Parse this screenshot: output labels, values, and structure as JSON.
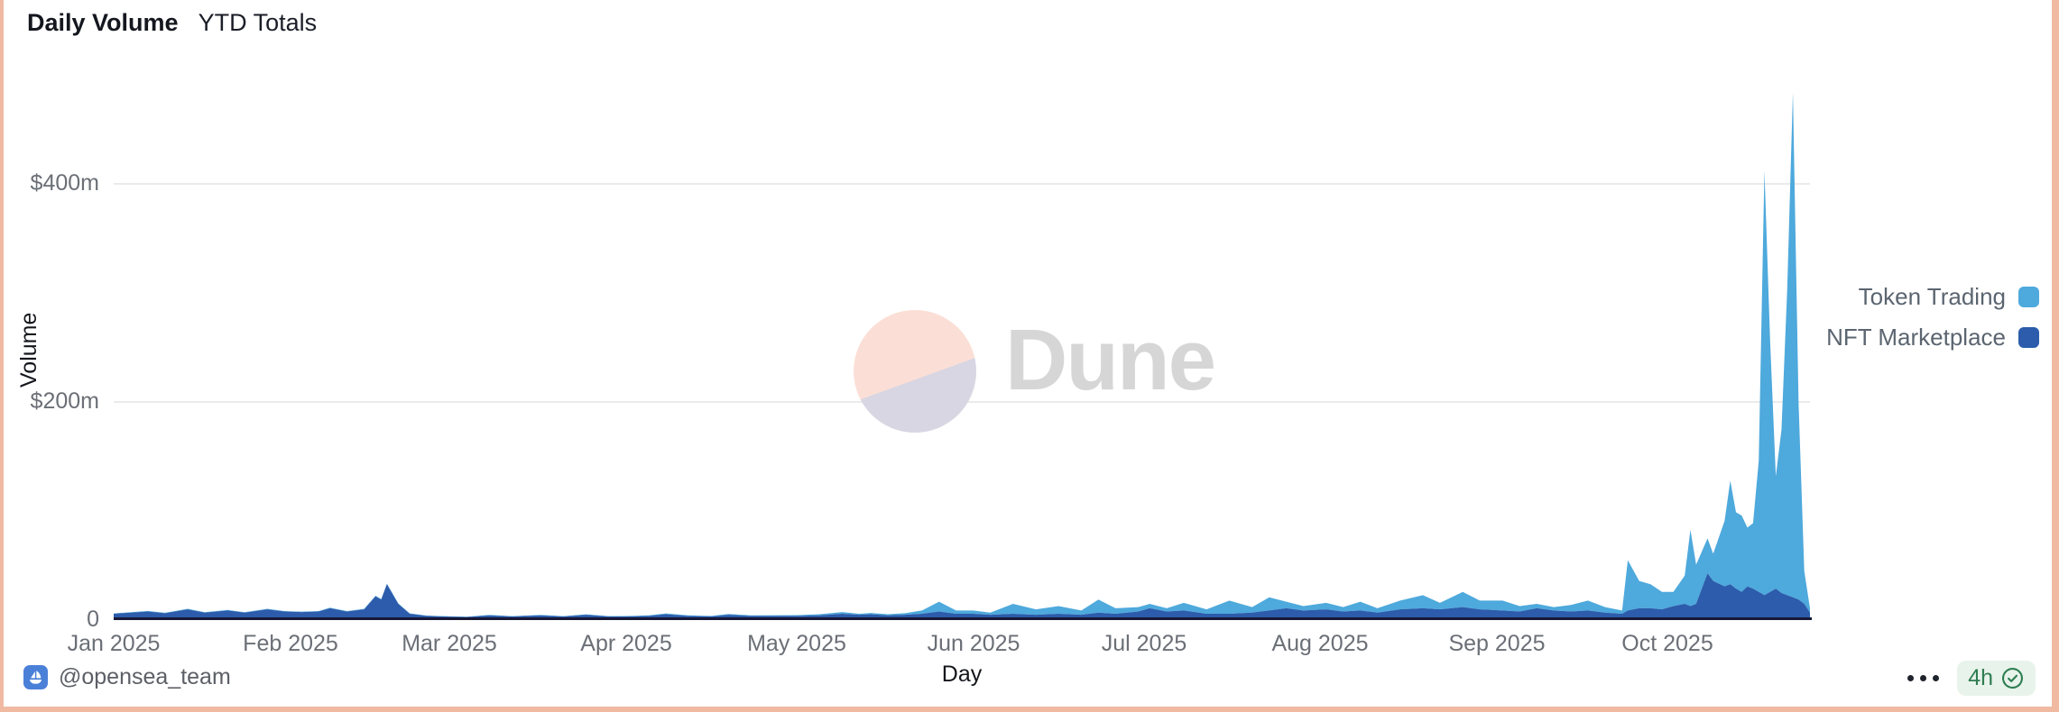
{
  "header": {
    "title": "Daily Volume",
    "subtitle": "YTD Totals"
  },
  "watermark": {
    "text": "Dune"
  },
  "legend": {
    "items": [
      {
        "label": "Token Trading",
        "color": "#4ea9dc"
      },
      {
        "label": "NFT Marketplace",
        "color": "#2c5cab"
      }
    ]
  },
  "footer": {
    "author_handle": "@opensea_team",
    "freshness_badge": {
      "label": "4h"
    }
  },
  "colors": {
    "token_trading": "#4ea9dc",
    "nft_marketplace": "#2c5cab",
    "frame_border": "#f0b9a2",
    "grid": "#ebebeb",
    "axis_line": "#181836",
    "badge_green": "#2f7d52",
    "badge_bg": "#e8f3eb",
    "avatar_blue": "#4b80d8",
    "watermark_pink": "#fbdfd6",
    "watermark_lavender": "#d8d6e2"
  },
  "chart_data": {
    "type": "area",
    "stacked": true,
    "title": "Daily Volume",
    "xlabel": "Day",
    "ylabel": "Volume",
    "x_unit": "day_of_year_2025",
    "xlim": [
      0,
      298
    ],
    "ylim_m": [
      0,
      518
    ],
    "grid": "horizontal",
    "legend_position": "right-outside",
    "y_ticks": [
      {
        "value": 0,
        "label": "0"
      },
      {
        "value": 200,
        "label": "$200m"
      },
      {
        "value": 400,
        "label": "$400m"
      }
    ],
    "x_ticks": [
      {
        "day": 0,
        "label": "Jan 2025"
      },
      {
        "day": 31,
        "label": "Feb 2025"
      },
      {
        "day": 59,
        "label": "Mar 2025"
      },
      {
        "day": 90,
        "label": "Apr 2025"
      },
      {
        "day": 120,
        "label": "May 2025"
      },
      {
        "day": 151,
        "label": "Jun 2025"
      },
      {
        "day": 181,
        "label": "Jul 2025"
      },
      {
        "day": 212,
        "label": "Aug 2025"
      },
      {
        "day": 243,
        "label": "Sep 2025"
      },
      {
        "day": 273,
        "label": "Oct 2025"
      }
    ],
    "series_meta": [
      {
        "name": "NFT Marketplace",
        "color": "#2c5cab",
        "stack_order": "bottom"
      },
      {
        "name": "Token Trading",
        "color": "#4ea9dc",
        "stack_order": "top"
      }
    ],
    "points_format": [
      "day_of_year",
      "nft_marketplace_usd_m",
      "token_trading_usd_m"
    ],
    "points": [
      [
        0,
        5,
        0.3
      ],
      [
        3,
        6,
        0.4
      ],
      [
        6,
        7,
        0.5
      ],
      [
        9,
        5.5,
        0.4
      ],
      [
        13,
        9,
        0.5
      ],
      [
        16,
        6,
        0.4
      ],
      [
        20,
        8,
        0.5
      ],
      [
        23,
        6,
        0.4
      ],
      [
        27,
        9,
        0.5
      ],
      [
        30,
        7,
        0.4
      ],
      [
        33,
        6.5,
        0.4
      ],
      [
        36,
        7,
        0.4
      ],
      [
        38,
        10,
        0.5
      ],
      [
        41,
        7,
        0.4
      ],
      [
        44,
        9,
        0.5
      ],
      [
        46,
        21,
        0.5
      ],
      [
        47,
        18,
        0.5
      ],
      [
        48,
        32,
        0.6
      ],
      [
        50,
        14,
        0.5
      ],
      [
        52,
        5,
        0.4
      ],
      [
        55,
        3,
        0.3
      ],
      [
        58,
        2.5,
        0.3
      ],
      [
        62,
        2,
        0.3
      ],
      [
        66,
        3.5,
        0.4
      ],
      [
        70,
        2.5,
        0.3
      ],
      [
        75,
        3.5,
        0.4
      ],
      [
        79,
        2.5,
        0.3
      ],
      [
        83,
        4,
        0.4
      ],
      [
        87,
        2.5,
        0.3
      ],
      [
        90,
        2.5,
        0.4
      ],
      [
        94,
        3,
        0.5
      ],
      [
        97,
        4.5,
        0.8
      ],
      [
        101,
        3,
        0.5
      ],
      [
        105,
        2.5,
        0.5
      ],
      [
        108,
        4,
        0.7
      ],
      [
        112,
        3,
        0.5
      ],
      [
        116,
        3,
        0.6
      ],
      [
        120,
        3,
        0.7
      ],
      [
        124,
        3.5,
        1
      ],
      [
        128,
        5,
        1.5
      ],
      [
        131,
        4,
        1
      ],
      [
        133,
        4.5,
        1.2
      ],
      [
        136,
        3.5,
        1
      ],
      [
        139,
        4,
        1.5
      ],
      [
        142,
        5,
        3
      ],
      [
        145,
        7,
        9
      ],
      [
        148,
        5,
        3
      ],
      [
        151,
        5,
        3
      ],
      [
        154,
        4,
        2
      ],
      [
        158,
        5,
        9
      ],
      [
        162,
        4,
        5
      ],
      [
        166,
        5,
        7
      ],
      [
        170,
        4,
        4
      ],
      [
        173,
        6,
        12
      ],
      [
        176,
        5,
        5
      ],
      [
        180,
        7,
        4
      ],
      [
        182,
        10,
        4
      ],
      [
        185,
        7,
        3
      ],
      [
        188,
        8,
        7
      ],
      [
        192,
        5,
        4
      ],
      [
        196,
        5,
        12
      ],
      [
        200,
        6,
        5
      ],
      [
        203,
        8,
        12
      ],
      [
        206,
        10,
        6
      ],
      [
        209,
        8,
        4
      ],
      [
        213,
        9,
        6
      ],
      [
        216,
        7,
        4
      ],
      [
        219,
        8,
        8
      ],
      [
        222,
        6,
        4
      ],
      [
        226,
        9,
        8
      ],
      [
        230,
        10,
        12
      ],
      [
        233,
        9,
        6
      ],
      [
        237,
        11,
        14
      ],
      [
        240,
        9,
        8
      ],
      [
        244,
        8,
        9
      ],
      [
        247,
        7,
        5
      ],
      [
        250,
        10,
        4
      ],
      [
        253,
        8,
        3
      ],
      [
        256,
        7,
        6
      ],
      [
        259,
        8,
        9
      ],
      [
        262,
        6,
        5
      ],
      [
        265,
        5,
        3
      ],
      [
        266,
        8,
        46
      ],
      [
        268,
        10,
        25
      ],
      [
        270,
        10,
        22
      ],
      [
        272,
        9,
        16
      ],
      [
        274,
        12,
        13
      ],
      [
        276,
        14,
        26
      ],
      [
        277,
        12,
        70
      ],
      [
        278,
        14,
        36
      ],
      [
        280,
        42,
        32
      ],
      [
        281,
        35,
        25
      ],
      [
        283,
        30,
        60
      ],
      [
        284,
        32,
        95
      ],
      [
        285,
        28,
        70
      ],
      [
        286,
        25,
        70
      ],
      [
        287,
        30,
        54
      ],
      [
        288,
        28,
        60
      ],
      [
        289,
        25,
        120
      ],
      [
        290,
        22,
        389
      ],
      [
        291,
        25,
        230
      ],
      [
        292,
        28,
        103
      ],
      [
        293,
        24,
        150
      ],
      [
        294,
        22,
        280
      ],
      [
        295,
        20,
        463
      ],
      [
        296,
        18,
        180
      ],
      [
        297,
        14,
        30
      ],
      [
        298,
        6,
        4
      ]
    ]
  }
}
